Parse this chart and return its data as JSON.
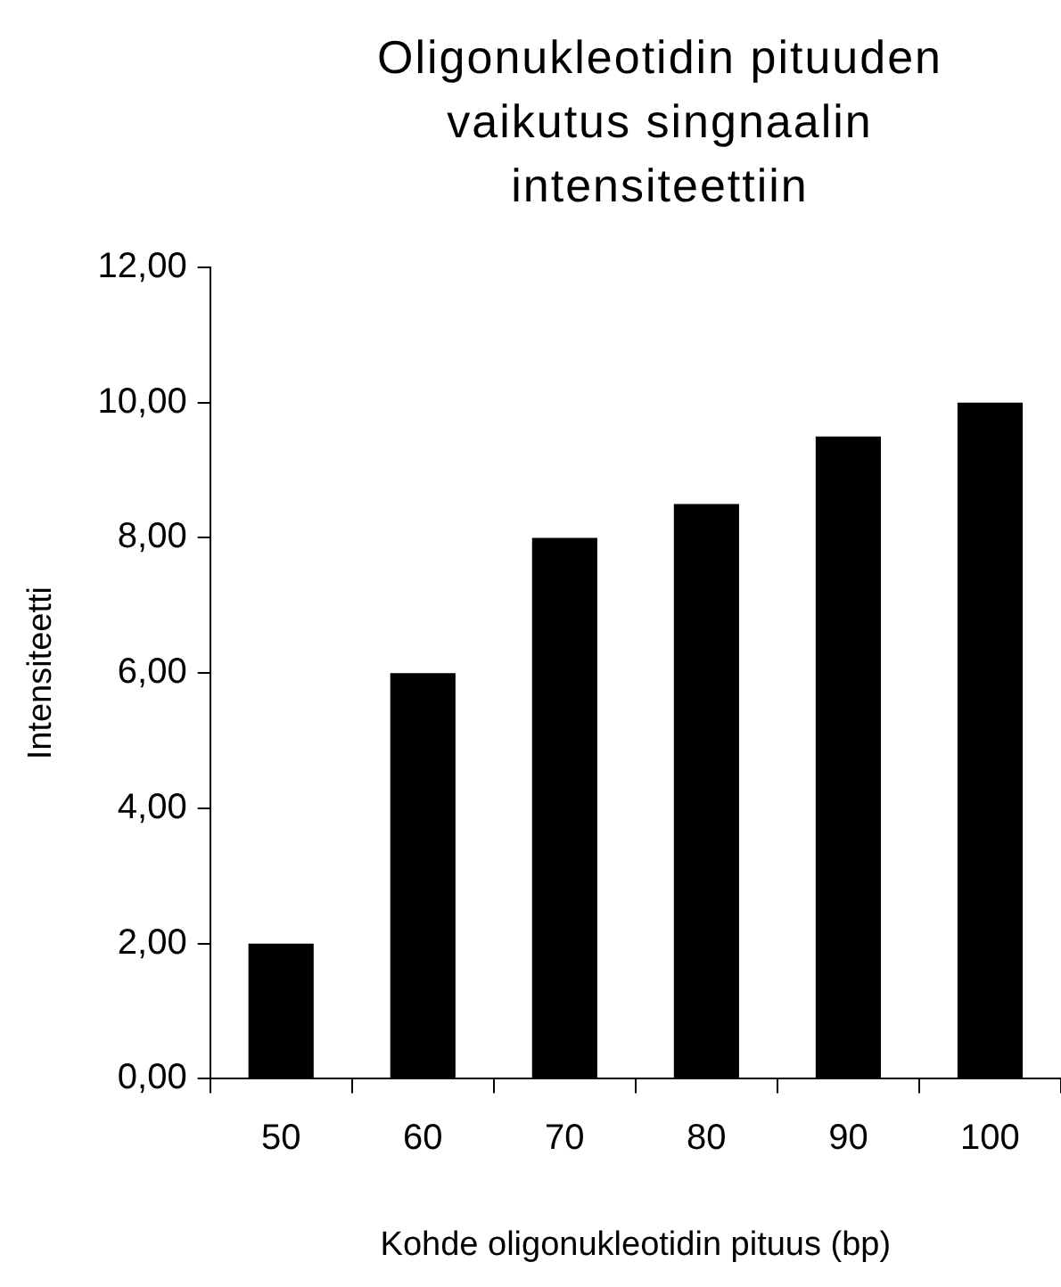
{
  "chart_data": {
    "type": "bar",
    "title": "Oligonukleotidin pituuden vaikutus singnaalin intensiteettiin",
    "xlabel": "Kohde oligonukleotidin pituus (bp)",
    "ylabel": "Intensiteetti",
    "categories": [
      "50",
      "60",
      "70",
      "80",
      "90",
      "100"
    ],
    "values": [
      2,
      6,
      8,
      8.5,
      9.5,
      10
    ],
    "color": "#000000",
    "ylim": [
      0,
      12
    ],
    "yticks": [
      {
        "value": 0,
        "label": "0,00"
      },
      {
        "value": 2,
        "label": "2,00"
      },
      {
        "value": 4,
        "label": "4,00"
      },
      {
        "value": 6,
        "label": "6,00"
      },
      {
        "value": 8,
        "label": "8,00"
      },
      {
        "value": 10,
        "label": "10,00"
      },
      {
        "value": 12,
        "label": "12,00"
      }
    ],
    "grid": false,
    "legend": false
  }
}
